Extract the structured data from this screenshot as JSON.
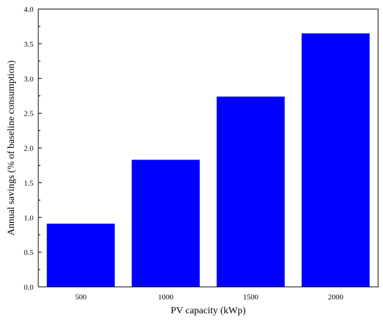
{
  "chart_data": {
    "type": "bar",
    "title": "",
    "xlabel": "PV capacity (kWp)",
    "ylabel": "Annual savings (% of baseline consumption)",
    "categories": [
      "500",
      "1000",
      "1500",
      "2000"
    ],
    "values": [
      0.91,
      1.83,
      2.74,
      3.65
    ],
    "ylim": [
      0,
      4.0
    ],
    "yticks": [
      "0.0",
      "0.5",
      "1.0",
      "1.5",
      "2.0",
      "2.5",
      "3.0",
      "3.5",
      "4.0"
    ],
    "bar_color": "#0000ff",
    "grid": false,
    "legend": "none"
  }
}
